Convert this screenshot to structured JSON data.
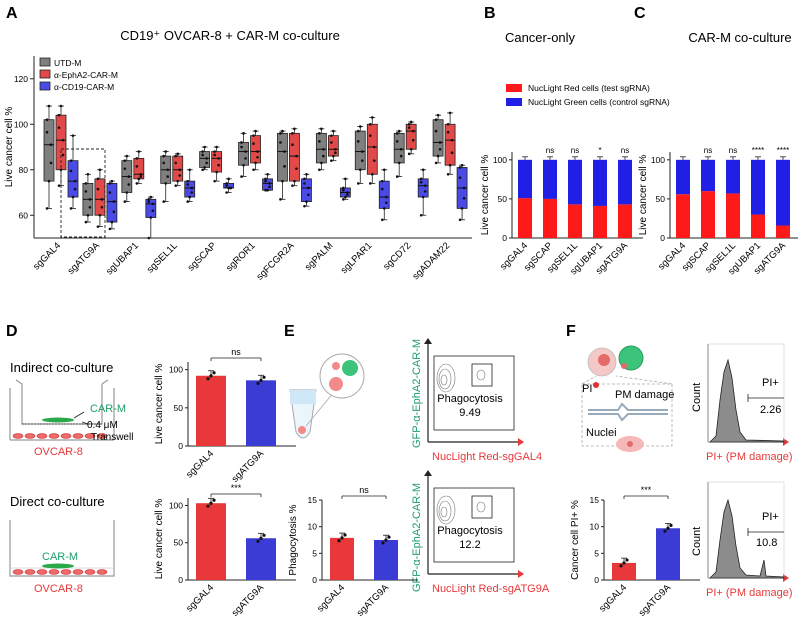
{
  "colors": {
    "gray": "#8a8a8a",
    "red": "#e8383a",
    "blue": "#3b3bd6",
    "green": "#1e9e6a",
    "axis": "#222222",
    "boxred": "#e24a4a",
    "boxblue": "#4a4ae6",
    "boxgray": "#7f7f7f"
  },
  "panels": {
    "A": {
      "letter": "A",
      "title": "CD19⁺ OVCAR-8 + CAR-M co-culture",
      "chart_data": {
        "type": "box",
        "ylabel": "Live cancer cell %",
        "ylim": [
          50,
          130
        ],
        "yticks": [
          "60",
          "80",
          "100",
          "120"
        ],
        "legend": [
          "UTD-M",
          "α-EphA2-CAR-M",
          "α-CD19-CAR-M"
        ],
        "categories": [
          "sgGAL4",
          "sgATG9A",
          "sgUBAP1",
          "sgSEL1L",
          "sgSCAP",
          "sgROR1",
          "sgFCGR2A",
          "sgPALM",
          "sgLPAR1",
          "sgCD72",
          "sgADAM22"
        ],
        "series": [
          {
            "name": "UTD-M",
            "boxes": [
              [
                63,
                75,
                91,
                102,
                108
              ],
              [
                57,
                60,
                67,
                74,
                78
              ],
              [
                66,
                70,
                77,
                84,
                86
              ],
              [
                66,
                74,
                80,
                86,
                88
              ],
              [
                80,
                81,
                85,
                88,
                90
              ],
              [
                77,
                82,
                88,
                92,
                96
              ],
              [
                67,
                75,
                88,
                96,
                97
              ],
              [
                80,
                83,
                89,
                96,
                98
              ],
              [
                74,
                80,
                88,
                97,
                99
              ],
              [
                77,
                83,
                89,
                96,
                97
              ],
              [
                83,
                86,
                92,
                102,
                104
              ]
            ]
          },
          {
            "name": "α-EphA2-CAR-M",
            "boxes": [
              [
                73,
                80,
                93,
                104,
                108
              ],
              [
                55,
                60,
                67,
                76,
                80
              ],
              [
                74,
                76,
                78,
                85,
                88
              ],
              [
                73,
                75,
                80,
                86,
                87
              ],
              [
                75,
                79,
                85,
                88,
                90
              ],
              [
                80,
                83,
                88,
                95,
                97
              ],
              [
                73,
                75,
                86,
                96,
                98
              ],
              [
                84,
                86,
                89,
                95,
                97
              ],
              [
                74,
                78,
                90,
                100,
                103
              ],
              [
                87,
                89,
                97,
                100,
                101
              ],
              [
                78,
                82,
                93,
                100,
                105
              ]
            ]
          },
          {
            "name": "α-CD19-CAR-M",
            "boxes": [
              [
                63,
                68,
                75,
                84,
                95
              ],
              [
                54,
                57,
                66,
                74,
                75
              ],
              [
                50,
                59,
                65,
                67,
                68
              ],
              [
                66,
                68,
                72,
                75,
                80
              ],
              [
                70,
                72,
                72,
                74,
                76
              ],
              [
                71,
                71,
                74,
                76,
                78
              ],
              [
                64,
                66,
                72,
                76,
                78
              ],
              [
                67,
                68,
                70,
                72,
                76
              ],
              [
                58,
                63,
                68,
                75,
                80
              ],
              [
                60,
                68,
                73,
                76,
                80
              ],
              [
                58,
                63,
                72,
                81,
                82
              ]
            ]
          }
        ]
      }
    },
    "B": {
      "letter": "B",
      "title": "Cancer-only",
      "legend": [
        "NucLight Red cells (test sgRNA)",
        "NucLight Green cells (control sgRNA)"
      ],
      "chart_data": {
        "type": "bar",
        "stacked": true,
        "ylabel": "Live cancer cell %",
        "ylim": [
          0,
          110
        ],
        "yticks": [
          "0",
          "50",
          "100"
        ],
        "categories": [
          "sgGAL4",
          "sgSCAP",
          "sgSEL1L",
          "sgUBAP1",
          "sgATG9A"
        ],
        "series": [
          {
            "name": "NucLight Red cells (test sgRNA)",
            "values": [
              51,
              50,
              43,
              41,
              43
            ]
          },
          {
            "name": "NucLight Green cells (control sgRNA)",
            "values": [
              49,
              50,
              57,
              59,
              57
            ]
          }
        ],
        "annotations": [
          "",
          "ns",
          "ns",
          "*",
          "ns"
        ]
      }
    },
    "C": {
      "letter": "C",
      "title": "CAR-M co-culture",
      "chart_data": {
        "type": "bar",
        "stacked": true,
        "ylabel": "Live cancer cell %",
        "ylim": [
          0,
          110
        ],
        "yticks": [
          "0",
          "50",
          "100"
        ],
        "categories": [
          "sgGAL4",
          "sgSCAP",
          "sgSEL1L",
          "sgUBAP1",
          "sgATG9A"
        ],
        "series": [
          {
            "name": "NucLight Red cells (test sgRNA)",
            "values": [
              56,
              60,
              57,
              30,
              16
            ]
          },
          {
            "name": "NucLight Green cells (control sgRNA)",
            "values": [
              44,
              40,
              43,
              70,
              84
            ]
          }
        ],
        "annotations": [
          "",
          "ns",
          "ns",
          "****",
          "****"
        ]
      }
    },
    "D": {
      "letter": "D",
      "indirect": {
        "title": "Indirect co-culture",
        "carm": "CAR-M",
        "pore": "0.4 μM",
        "transwell": "Transwell",
        "ovcar": "OVCAR-8"
      },
      "direct": {
        "title": "Direct co-culture",
        "carm": "CAR-M",
        "ovcar": "OVCAR-8"
      },
      "chart_data": [
        {
          "type": "bar",
          "ylabel": "Live cancer cell %",
          "ylim": [
            0,
            110
          ],
          "yticks": [
            "0",
            "50",
            "100"
          ],
          "categories": [
            "sgGAL4",
            "sgATG9A"
          ],
          "values": [
            92,
            86
          ],
          "significance": "ns"
        },
        {
          "type": "bar",
          "ylabel": "Live cancer cell %",
          "ylim": [
            0,
            110
          ],
          "yticks": [
            "0",
            "50",
            "100"
          ],
          "categories": [
            "sgGAL4",
            "sgATG9A"
          ],
          "values": [
            103,
            56
          ],
          "significance": "***"
        }
      ]
    },
    "E": {
      "letter": "E",
      "flow_top": {
        "ylabel": "GFP-α-EphA2-CAR-M",
        "xlabel": "NucLight Red-sgGAL4",
        "gate": "Phagocytosis",
        "value": "9.49"
      },
      "flow_bottom": {
        "ylabel": "GFP-α-EphA2-CAR-M",
        "xlabel": "NucLight Red-sgATG9A",
        "gate": "Phagocytosis",
        "value": "12.2"
      },
      "chart_data": {
        "type": "bar",
        "ylabel": "Phagocytosis %",
        "ylim": [
          0,
          15
        ],
        "yticks": [
          "0",
          "5",
          "10",
          "15"
        ],
        "categories": [
          "sgGAL4",
          "sgATG9A"
        ],
        "values": [
          7.9,
          7.5
        ],
        "significance": "ns"
      }
    },
    "F": {
      "letter": "F",
      "schematic": {
        "pi": "PI",
        "pm": "PM damage",
        "nuclei": "Nuclei"
      },
      "hist_top": {
        "ylabel": "Count",
        "xlabel": "PI+ (PM damage)",
        "gate": "PI+",
        "value": "2.26"
      },
      "hist_bottom": {
        "ylabel": "Count",
        "xlabel": "PI+ (PM damage)",
        "gate": "PI+",
        "value": "10.8"
      },
      "chart_data": {
        "type": "bar",
        "ylabel": "Cancer cell PI+ %",
        "ylim": [
          0,
          15
        ],
        "yticks": [
          "0",
          "5",
          "10",
          "15"
        ],
        "categories": [
          "sgGAL4",
          "sgATG9A"
        ],
        "values": [
          3.2,
          9.7
        ],
        "significance": "***"
      }
    }
  }
}
